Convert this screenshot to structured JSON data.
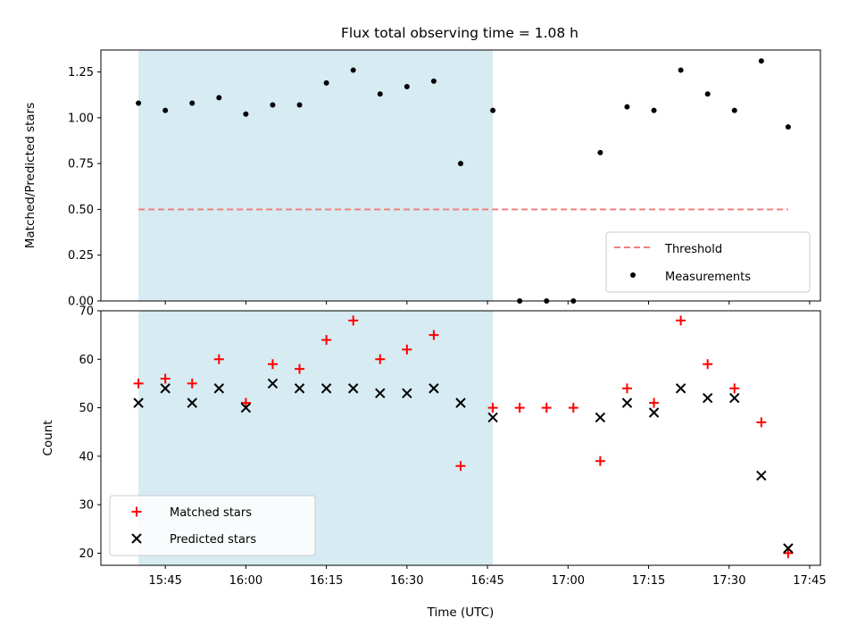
{
  "title": "Flux total observing time = 1.08 h",
  "colors": {
    "shaded_region": "#add8e6",
    "threshold": "#f08080",
    "matched": "#ff0000",
    "predicted": "#000000",
    "measurements": "#000000"
  },
  "chart_data": [
    {
      "type": "scatter",
      "ylabel": "Matched/Predicted stars",
      "ylim": [
        0,
        1.37
      ],
      "yticks": [
        0.0,
        0.25,
        0.5,
        0.75,
        1.0,
        1.25
      ],
      "ytick_labels": [
        "0.00",
        "0.25",
        "0.50",
        "0.75",
        "1.00",
        "1.25"
      ],
      "shaded_span": {
        "start": "15:40",
        "end": "16:46"
      },
      "threshold": {
        "value": 0.5,
        "from": "15:40",
        "to": "17:41",
        "label": "Threshold",
        "style": "dashed"
      },
      "legend_position": "lower-right",
      "series": [
        {
          "name": "Measurements",
          "marker": "dot",
          "x": [
            "15:40",
            "15:45",
            "15:50",
            "15:55",
            "16:00",
            "16:05",
            "16:10",
            "16:15",
            "16:20",
            "16:25",
            "16:30",
            "16:35",
            "16:40",
            "16:46",
            "16:51",
            "16:56",
            "17:01",
            "17:06",
            "17:11",
            "17:16",
            "17:21",
            "17:26",
            "17:31",
            "17:36",
            "17:41"
          ],
          "y": [
            1.08,
            1.04,
            1.08,
            1.11,
            1.02,
            1.07,
            1.07,
            1.19,
            1.26,
            1.13,
            1.17,
            1.2,
            0.75,
            1.04,
            0.0,
            0.0,
            0.0,
            0.81,
            1.06,
            1.04,
            1.26,
            1.13,
            1.04,
            1.31,
            0.95
          ]
        }
      ],
      "legend": [
        "Threshold",
        "Measurements"
      ]
    },
    {
      "type": "scatter",
      "ylabel": "Count",
      "xlabel": "Time (UTC)",
      "ylim": [
        17.5,
        70
      ],
      "yticks": [
        20,
        30,
        40,
        50,
        60,
        70
      ],
      "ytick_labels": [
        "20",
        "30",
        "40",
        "50",
        "60",
        "70"
      ],
      "xlim": [
        "15:33",
        "17:47"
      ],
      "xticks": [
        "15:45",
        "16:00",
        "16:15",
        "16:30",
        "16:45",
        "17:00",
        "17:15",
        "17:30",
        "17:45"
      ],
      "shaded_span": {
        "start": "15:40",
        "end": "16:46"
      },
      "legend_position": "lower-left",
      "series": [
        {
          "name": "Matched stars",
          "marker": "plus",
          "x": [
            "15:40",
            "15:45",
            "15:50",
            "15:55",
            "16:00",
            "16:05",
            "16:10",
            "16:15",
            "16:20",
            "16:25",
            "16:30",
            "16:35",
            "16:40",
            "16:46",
            "16:51",
            "16:56",
            "17:01",
            "17:06",
            "17:11",
            "17:16",
            "17:21",
            "17:26",
            "17:31",
            "17:36",
            "17:41"
          ],
          "y": [
            55,
            56,
            55,
            60,
            51,
            59,
            58,
            64,
            68,
            60,
            62,
            65,
            38,
            50,
            50,
            50,
            50,
            39,
            54,
            51,
            68,
            59,
            54,
            47,
            20
          ]
        },
        {
          "name": "Predicted stars",
          "marker": "x",
          "x": [
            "15:40",
            "15:45",
            "15:50",
            "15:55",
            "16:00",
            "16:05",
            "16:10",
            "16:15",
            "16:20",
            "16:25",
            "16:30",
            "16:35",
            "16:40",
            "16:46",
            "17:06",
            "17:11",
            "17:16",
            "17:21",
            "17:26",
            "17:31",
            "17:36",
            "17:41"
          ],
          "y": [
            51,
            54,
            51,
            54,
            50,
            55,
            54,
            54,
            54,
            53,
            53,
            54,
            51,
            48,
            48,
            51,
            49,
            54,
            52,
            52,
            36,
            21
          ]
        }
      ],
      "legend": [
        "Matched stars",
        "Predicted stars"
      ]
    }
  ]
}
